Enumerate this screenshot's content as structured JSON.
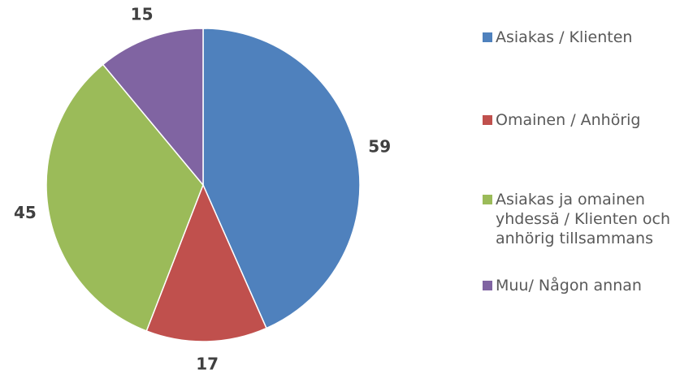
{
  "chart_data": {
    "type": "pie",
    "categories": [
      "Asiakas / Klienten",
      "Omainen / Anhörig",
      "Asiakas ja omainen yhdessä / Klienten och anhörig tillsammans",
      "Muu/ Någon annan"
    ],
    "values": [
      59,
      17,
      45,
      15
    ],
    "colors": [
      "#4f81bd",
      "#c0504d",
      "#9bbb59",
      "#8064a2"
    ],
    "legend": "right"
  }
}
